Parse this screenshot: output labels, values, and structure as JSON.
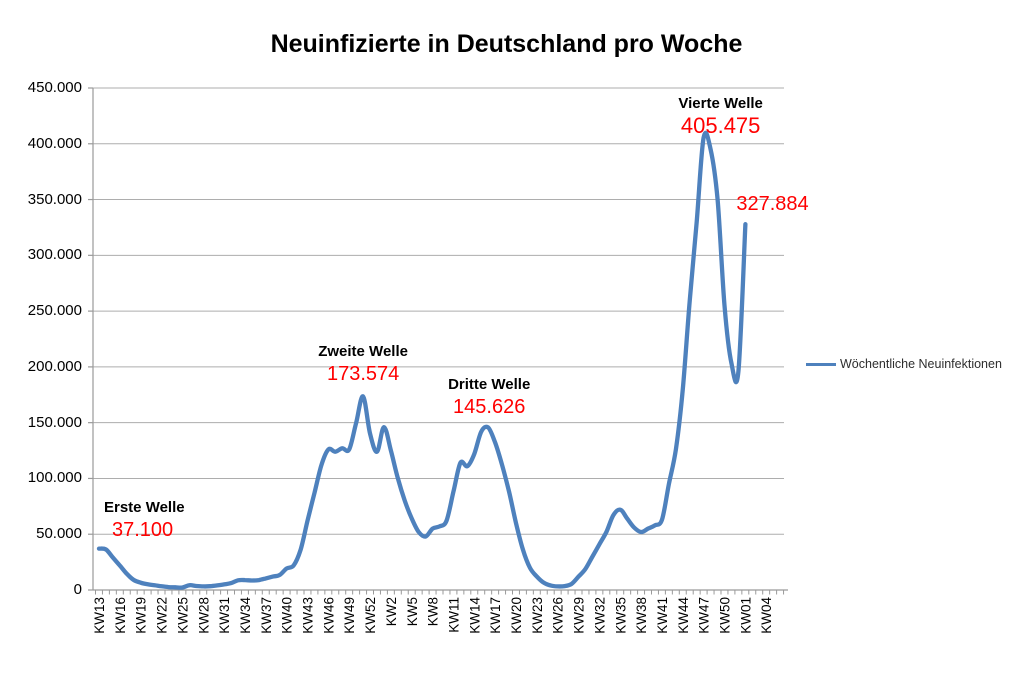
{
  "title": "Neuinfizierte in Deutschland pro Woche",
  "legend": {
    "label": "Wöchentliche Neuinfektionen"
  },
  "colors": {
    "series_line": "#4E81BD",
    "annotation_value": "#FF0000",
    "text": "#000000",
    "gridline": "#ADADAD",
    "axis": "#9A9A9A"
  },
  "y_axis": {
    "min": 0,
    "max": 450000,
    "step": 50000,
    "tick_labels": [
      "450.000",
      "400.000",
      "350.000",
      "300.000",
      "250.000",
      "200.000",
      "150.000",
      "100.000",
      "50.000",
      "0"
    ]
  },
  "x_axis": {
    "tick_every_n_weeks": 3,
    "tick_labels": [
      "KW13",
      "KW16",
      "KW19",
      "KW22",
      "KW25",
      "KW28",
      "KW31",
      "KW34",
      "KW37",
      "KW40",
      "KW43",
      "KW46",
      "KW49",
      "KW52",
      "KW2",
      "KW5",
      "KW8",
      "KW11",
      "KW14",
      "KW17",
      "KW20",
      "KW23",
      "KW26",
      "KW29",
      "KW32",
      "KW35",
      "KW38",
      "KW41",
      "KW44",
      "KW47",
      "KW50",
      "KW01",
      "KW04"
    ]
  },
  "chart_data": {
    "type": "line",
    "title": "Neuinfizierte in Deutschland pro Woche",
    "xlabel": "",
    "ylabel": "",
    "ylim": [
      0,
      450000
    ],
    "grid": true,
    "smoothed": true,
    "legend_position": "right",
    "series": [
      {
        "name": "Wöchentliche Neuinfektionen",
        "x": [
          "KW13",
          "KW14",
          "KW15",
          "KW16",
          "KW17",
          "KW18",
          "KW19",
          "KW20",
          "KW21",
          "KW22",
          "KW23",
          "KW24",
          "KW25",
          "KW26",
          "KW27",
          "KW28",
          "KW29",
          "KW30",
          "KW31",
          "KW32",
          "KW33",
          "KW34",
          "KW35",
          "KW36",
          "KW37",
          "KW38",
          "KW39",
          "KW40",
          "KW41",
          "KW42",
          "KW43",
          "KW44",
          "KW45",
          "KW46",
          "KW47",
          "KW48",
          "KW49",
          "KW50",
          "KW51",
          "KW52",
          "KW53",
          "KW1",
          "KW2",
          "KW3",
          "KW4",
          "KW5",
          "KW6",
          "KW7",
          "KW8",
          "KW9",
          "KW10",
          "KW11",
          "KW12",
          "KW13",
          "KW14",
          "KW15",
          "KW16",
          "KW17",
          "KW18",
          "KW19",
          "KW20",
          "KW21",
          "KW22",
          "KW23",
          "KW24",
          "KW25",
          "KW26",
          "KW27",
          "KW28",
          "KW29",
          "KW30",
          "KW31",
          "KW32",
          "KW33",
          "KW34",
          "KW35",
          "KW36",
          "KW37",
          "KW38",
          "KW39",
          "KW40",
          "KW41",
          "KW42",
          "KW43",
          "KW44",
          "KW45",
          "KW46",
          "KW47",
          "KW48",
          "KW49",
          "KW50",
          "KW51",
          "KW52",
          "KW01"
        ],
        "values": [
          37100,
          36300,
          29000,
          22000,
          14500,
          9000,
          6500,
          5100,
          4200,
          3300,
          2600,
          2400,
          2200,
          4300,
          3600,
          3200,
          3400,
          4100,
          5000,
          6200,
          8700,
          8900,
          8500,
          8900,
          10400,
          12000,
          13500,
          19300,
          22000,
          36000,
          62000,
          87000,
          112000,
          126000,
          124000,
          127000,
          126000,
          150000,
          173574,
          140000,
          124000,
          146000,
          125000,
          100000,
          80000,
          64000,
          52000,
          48000,
          55000,
          57000,
          62000,
          88000,
          114000,
          111000,
          122000,
          142000,
          145626,
          132000,
          112000,
          88000,
          60000,
          36000,
          20000,
          12000,
          6500,
          4000,
          3200,
          3500,
          5500,
          12000,
          19000,
          30000,
          41000,
          52000,
          67000,
          72000,
          64000,
          56000,
          52000,
          55000,
          58000,
          63000,
          95000,
          126000,
          180000,
          260000,
          330000,
          405475,
          395000,
          350000,
          255000,
          203000,
          196000,
          327884
        ]
      }
    ]
  },
  "annotations": [
    {
      "id": "erste-welle",
      "label": "Erste Welle",
      "value_text": "37.100",
      "value": 37100,
      "week_index": 0
    },
    {
      "id": "zweite-welle",
      "label": "Zweite Welle",
      "value_text": "173.574",
      "value": 173574,
      "week_index": 38
    },
    {
      "id": "dritte-welle",
      "label": "Dritte Welle",
      "value_text": "145.626",
      "value": 145626,
      "week_index": 56
    },
    {
      "id": "vierte-welle",
      "label": "Vierte Welle",
      "value_text": "405.475",
      "value": 405475,
      "week_index": 87
    },
    {
      "id": "letzter-wert",
      "label": "",
      "value_text": "327.884",
      "value": 327884,
      "week_index": 93
    }
  ]
}
